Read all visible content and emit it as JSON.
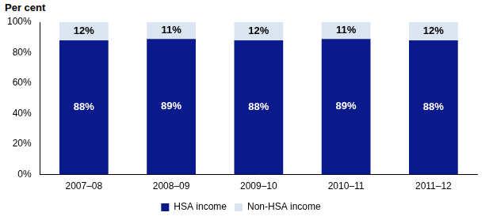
{
  "chart_data": {
    "type": "bar",
    "y_label": "Per cent",
    "categories": [
      "2007–08",
      "2008–09",
      "2009–10",
      "2010–11",
      "2011–12"
    ],
    "series": [
      {
        "name": "HSA income",
        "color": "#0a1a8c",
        "values": [
          88,
          89,
          88,
          89,
          88
        ],
        "value_labels": [
          "88%",
          "89%",
          "88%",
          "89%",
          "88%"
        ]
      },
      {
        "name": "Non-HSA income",
        "color": "#dbe5f1",
        "values": [
          12,
          11,
          12,
          11,
          12
        ],
        "value_labels": [
          "12%",
          "11%",
          "12%",
          "11%",
          "12%"
        ]
      }
    ],
    "ylim": [
      0,
      100
    ],
    "yticks": [
      {
        "value": 0,
        "label": "0%"
      },
      {
        "value": 20,
        "label": "20%"
      },
      {
        "value": 40,
        "label": "40%"
      },
      {
        "value": 60,
        "label": "60%"
      },
      {
        "value": 80,
        "label": "80%"
      },
      {
        "value": 100,
        "label": "100%"
      }
    ],
    "stacked": true,
    "data_labels": true,
    "grid": false,
    "legend": "bottom"
  }
}
